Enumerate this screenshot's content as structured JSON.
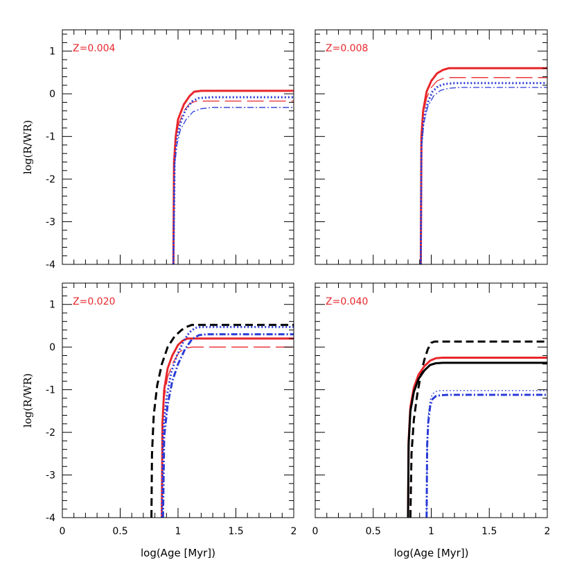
{
  "chart_data": [
    {
      "type": "line",
      "panel": "top-left",
      "label": "Z=0.004",
      "xlim": [
        0,
        2
      ],
      "ylim": [
        -4,
        1.5
      ],
      "series": [
        {
          "name": "red-thick-solid",
          "color": "#e8262b",
          "style": "solid",
          "weight": "thick",
          "x": [
            0.96,
            0.965,
            0.98,
            1.0,
            1.05,
            1.1,
            1.14,
            1.2,
            2.0
          ],
          "y": [
            -4.0,
            -1.6,
            -1.0,
            -0.6,
            -0.25,
            -0.05,
            0.05,
            0.07,
            0.07
          ]
        },
        {
          "name": "red-thin-longdash",
          "color": "#e8262b",
          "style": "longdash",
          "weight": "thin",
          "x": [
            0.96,
            0.965,
            0.98,
            1.0,
            1.05,
            1.1,
            1.15,
            1.25,
            2.0
          ],
          "y": [
            -4.0,
            -1.7,
            -1.1,
            -0.75,
            -0.4,
            -0.23,
            -0.18,
            -0.17,
            -0.17
          ]
        },
        {
          "name": "blue-dotted",
          "color": "#2a3bd6",
          "style": "dotted",
          "weight": "thick",
          "x": [
            0.96,
            0.97,
            0.99,
            1.02,
            1.06,
            1.12,
            1.18,
            1.3,
            2.0
          ],
          "y": [
            -4.0,
            -1.6,
            -1.05,
            -0.7,
            -0.4,
            -0.18,
            -0.1,
            -0.08,
            -0.08
          ]
        },
        {
          "name": "blue-dashdot",
          "color": "#2a3bd6",
          "style": "dashdot",
          "weight": "thin",
          "x": [
            0.96,
            0.97,
            0.99,
            1.02,
            1.07,
            1.13,
            1.2,
            1.3,
            2.0
          ],
          "y": [
            -4.0,
            -1.7,
            -1.2,
            -0.85,
            -0.6,
            -0.42,
            -0.35,
            -0.32,
            -0.32
          ]
        }
      ]
    },
    {
      "type": "line",
      "panel": "top-right",
      "label": "Z=0.008",
      "xlim": [
        0,
        2
      ],
      "ylim": [
        -4,
        1.5
      ],
      "series": [
        {
          "name": "red-thick-solid",
          "color": "#e8262b",
          "style": "solid",
          "weight": "thick",
          "x": [
            0.91,
            0.915,
            0.93,
            0.96,
            1.0,
            1.05,
            1.1,
            1.15,
            1.2,
            2.0
          ],
          "y": [
            -4.0,
            -1.0,
            -0.4,
            0.05,
            0.3,
            0.48,
            0.56,
            0.6,
            0.6,
            0.6
          ]
        },
        {
          "name": "red-thin-longdash",
          "color": "#e8262b",
          "style": "longdash",
          "weight": "thin",
          "x": [
            0.91,
            0.915,
            0.93,
            0.96,
            1.0,
            1.05,
            1.1,
            1.15,
            1.25,
            2.0
          ],
          "y": [
            -4.0,
            -1.1,
            -0.5,
            -0.1,
            0.15,
            0.3,
            0.36,
            0.38,
            0.38,
            0.38
          ]
        },
        {
          "name": "blue-dotted",
          "color": "#2a3bd6",
          "style": "dotted",
          "weight": "thick",
          "x": [
            0.91,
            0.915,
            0.935,
            0.97,
            1.01,
            1.06,
            1.12,
            1.2,
            2.0
          ],
          "y": [
            -4.0,
            -1.2,
            -0.6,
            -0.2,
            0.05,
            0.18,
            0.23,
            0.25,
            0.25
          ]
        },
        {
          "name": "blue-dashdot",
          "color": "#2a3bd6",
          "style": "dashdot",
          "weight": "thin",
          "x": [
            0.91,
            0.915,
            0.935,
            0.97,
            1.02,
            1.08,
            1.15,
            1.25,
            2.0
          ],
          "y": [
            -4.0,
            -1.3,
            -0.7,
            -0.3,
            -0.05,
            0.08,
            0.13,
            0.15,
            0.15
          ]
        }
      ]
    },
    {
      "type": "line",
      "panel": "bottom-left",
      "label": "Z=0.020",
      "xlim": [
        0,
        2
      ],
      "ylim": [
        -4,
        1.5
      ],
      "series": [
        {
          "name": "black-dashed",
          "color": "#000000",
          "style": "dashed",
          "weight": "thick",
          "x": [
            0.77,
            0.775,
            0.79,
            0.82,
            0.86,
            0.91,
            0.97,
            1.03,
            1.08,
            1.12,
            1.15,
            2.0
          ],
          "y": [
            -4.0,
            -2.5,
            -1.6,
            -0.9,
            -0.4,
            0.0,
            0.25,
            0.4,
            0.48,
            0.52,
            0.52,
            0.52
          ]
        },
        {
          "name": "red-thick-solid",
          "color": "#e8262b",
          "style": "solid",
          "weight": "thick",
          "x": [
            0.86,
            0.865,
            0.88,
            0.91,
            0.95,
            1.0,
            1.04,
            1.08,
            1.12,
            2.0
          ],
          "y": [
            -4.0,
            -1.8,
            -1.0,
            -0.5,
            -0.2,
            0.05,
            0.15,
            0.2,
            0.2,
            0.2
          ]
        },
        {
          "name": "red-thin-longdash",
          "color": "#e8262b",
          "style": "longdash",
          "weight": "thin",
          "x": [
            0.86,
            0.865,
            0.88,
            0.91,
            0.96,
            1.01,
            1.06,
            1.12,
            1.2,
            2.0
          ],
          "y": [
            -4.0,
            -1.9,
            -1.2,
            -0.7,
            -0.35,
            -0.12,
            -0.03,
            0.0,
            0.0,
            0.0
          ]
        },
        {
          "name": "blue-dotted",
          "color": "#2a3bd6",
          "style": "dotted",
          "weight": "thick",
          "x": [
            0.86,
            0.87,
            0.9,
            0.94,
            0.99,
            1.05,
            1.1,
            1.15,
            1.2,
            2.0
          ],
          "y": [
            -4.0,
            -2.0,
            -1.2,
            -0.6,
            -0.2,
            0.15,
            0.35,
            0.45,
            0.47,
            0.47
          ]
        },
        {
          "name": "blue-dashdot",
          "color": "#2a3bd6",
          "style": "dashdot",
          "weight": "thick",
          "x": [
            0.87,
            0.88,
            0.91,
            0.95,
            1.0,
            1.06,
            1.12,
            1.18,
            1.25,
            2.0
          ],
          "y": [
            -4.0,
            -2.1,
            -1.35,
            -0.8,
            -0.4,
            -0.05,
            0.18,
            0.28,
            0.3,
            0.3
          ]
        }
      ]
    },
    {
      "type": "line",
      "panel": "bottom-right",
      "label": "Z=0.040",
      "xlim": [
        0,
        2
      ],
      "ylim": [
        -4,
        1.5
      ],
      "series": [
        {
          "name": "black-dashed",
          "color": "#000000",
          "style": "dashed",
          "weight": "thick",
          "x": [
            0.82,
            0.83,
            0.85,
            0.88,
            0.91,
            0.94,
            0.97,
            1.0,
            1.03,
            2.0
          ],
          "y": [
            -4.0,
            -2.5,
            -1.7,
            -1.1,
            -0.65,
            -0.3,
            -0.05,
            0.1,
            0.13,
            0.13
          ]
        },
        {
          "name": "red-thick-solid",
          "color": "#e8262b",
          "style": "solid",
          "weight": "thick",
          "x": [
            0.8,
            0.805,
            0.82,
            0.85,
            0.89,
            0.94,
            0.99,
            1.04,
            1.1,
            2.0
          ],
          "y": [
            -4.0,
            -2.2,
            -1.4,
            -0.95,
            -0.65,
            -0.45,
            -0.32,
            -0.26,
            -0.25,
            -0.25
          ]
        },
        {
          "name": "black-solid",
          "color": "#000000",
          "style": "solid",
          "weight": "thick",
          "x": [
            0.8,
            0.805,
            0.82,
            0.85,
            0.89,
            0.94,
            0.99,
            1.04,
            1.1,
            2.0
          ],
          "y": [
            -4.0,
            -2.3,
            -1.5,
            -1.05,
            -0.75,
            -0.55,
            -0.42,
            -0.38,
            -0.37,
            -0.37
          ]
        },
        {
          "name": "blue-dotted",
          "color": "#2a3bd6",
          "style": "dotted",
          "weight": "thin",
          "x": [
            0.96,
            0.965,
            0.975,
            0.99,
            1.01,
            1.04,
            1.08,
            1.15,
            2.0
          ],
          "y": [
            -4.0,
            -2.2,
            -1.6,
            -1.25,
            -1.1,
            -1.04,
            -1.02,
            -1.02,
            -1.02
          ]
        },
        {
          "name": "blue-dashdot",
          "color": "#2a3bd6",
          "style": "dashdot",
          "weight": "thick",
          "x": [
            0.96,
            0.965,
            0.975,
            0.99,
            1.01,
            1.04,
            1.08,
            1.15,
            2.0
          ],
          "y": [
            -4.0,
            -2.3,
            -1.75,
            -1.4,
            -1.22,
            -1.15,
            -1.13,
            -1.12,
            -1.12
          ]
        }
      ]
    }
  ],
  "axes": {
    "xlabel": "log(Age [Myr])",
    "ylabel": "log(R/WR)",
    "xticks": [
      "0",
      "0.5",
      "1",
      "1.5",
      "2"
    ],
    "yticks": [
      "1",
      "0",
      "-1",
      "-2",
      "-3",
      "-4"
    ]
  }
}
